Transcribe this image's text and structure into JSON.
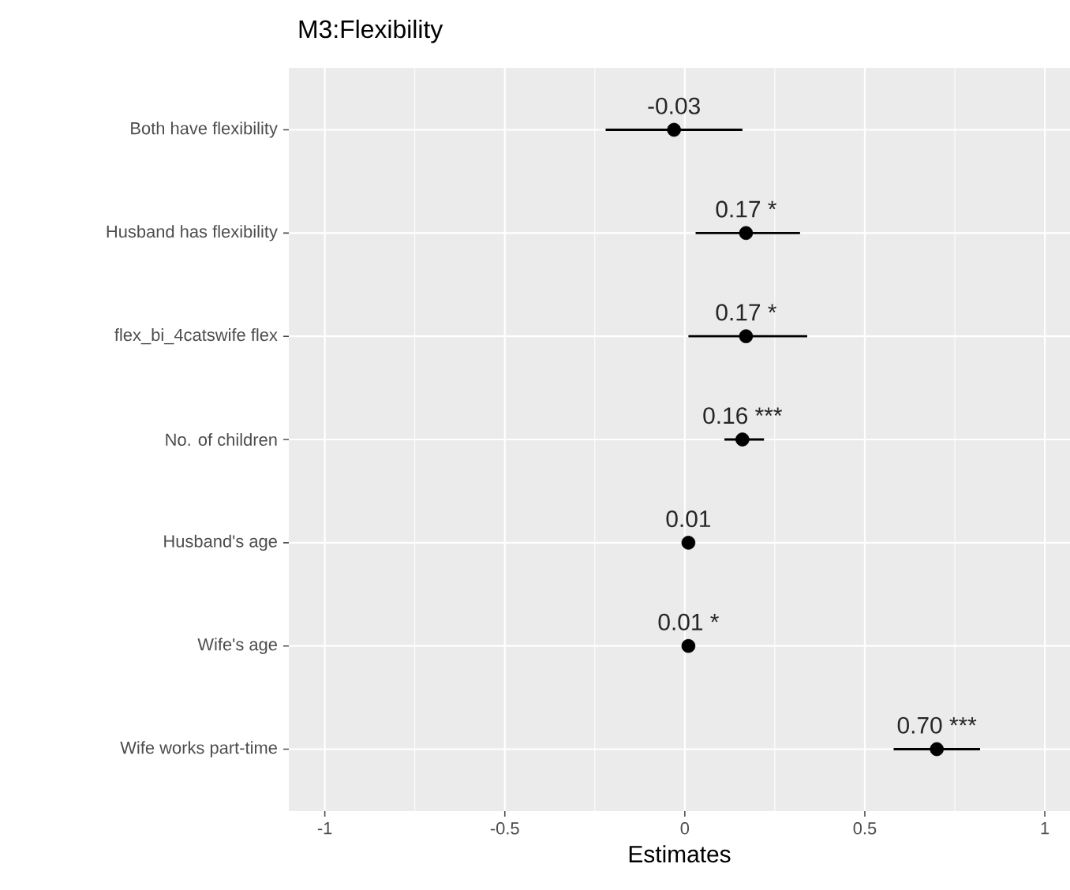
{
  "chart_data": {
    "type": "scatter",
    "orientation": "horizontal",
    "title": "M3:Flexibility",
    "xlabel": "Estimates",
    "categories": [
      "Both have flexibility",
      "Husband has flexibility",
      "flex_bi_4catswife flex",
      "No. of children",
      "Husband's age",
      "Wife's age",
      "Wife works part-time"
    ],
    "values": [
      -0.03,
      0.17,
      0.17,
      0.16,
      0.01,
      0.01,
      0.7
    ],
    "errors": [
      [
        -0.22,
        0.16
      ],
      [
        0.03,
        0.32
      ],
      [
        0.01,
        0.34
      ],
      [
        0.11,
        0.22
      ],
      null,
      null,
      [
        0.58,
        0.82
      ]
    ],
    "value_labels": [
      "-0.03",
      "0.17 *",
      "0.17 *",
      "0.16 ***",
      "0.01",
      "0.01 *",
      "0.70 ***"
    ],
    "color": "#000000",
    "grid": true,
    "xlim": [
      -1.1,
      1.07
    ],
    "xticks": [
      {
        "value": -1,
        "label": "-1"
      },
      {
        "value": -0.5,
        "label": "-0.5"
      },
      {
        "value": 0,
        "label": "0"
      },
      {
        "value": 0.5,
        "label": "0.5"
      },
      {
        "value": 1,
        "label": "1"
      }
    ]
  }
}
